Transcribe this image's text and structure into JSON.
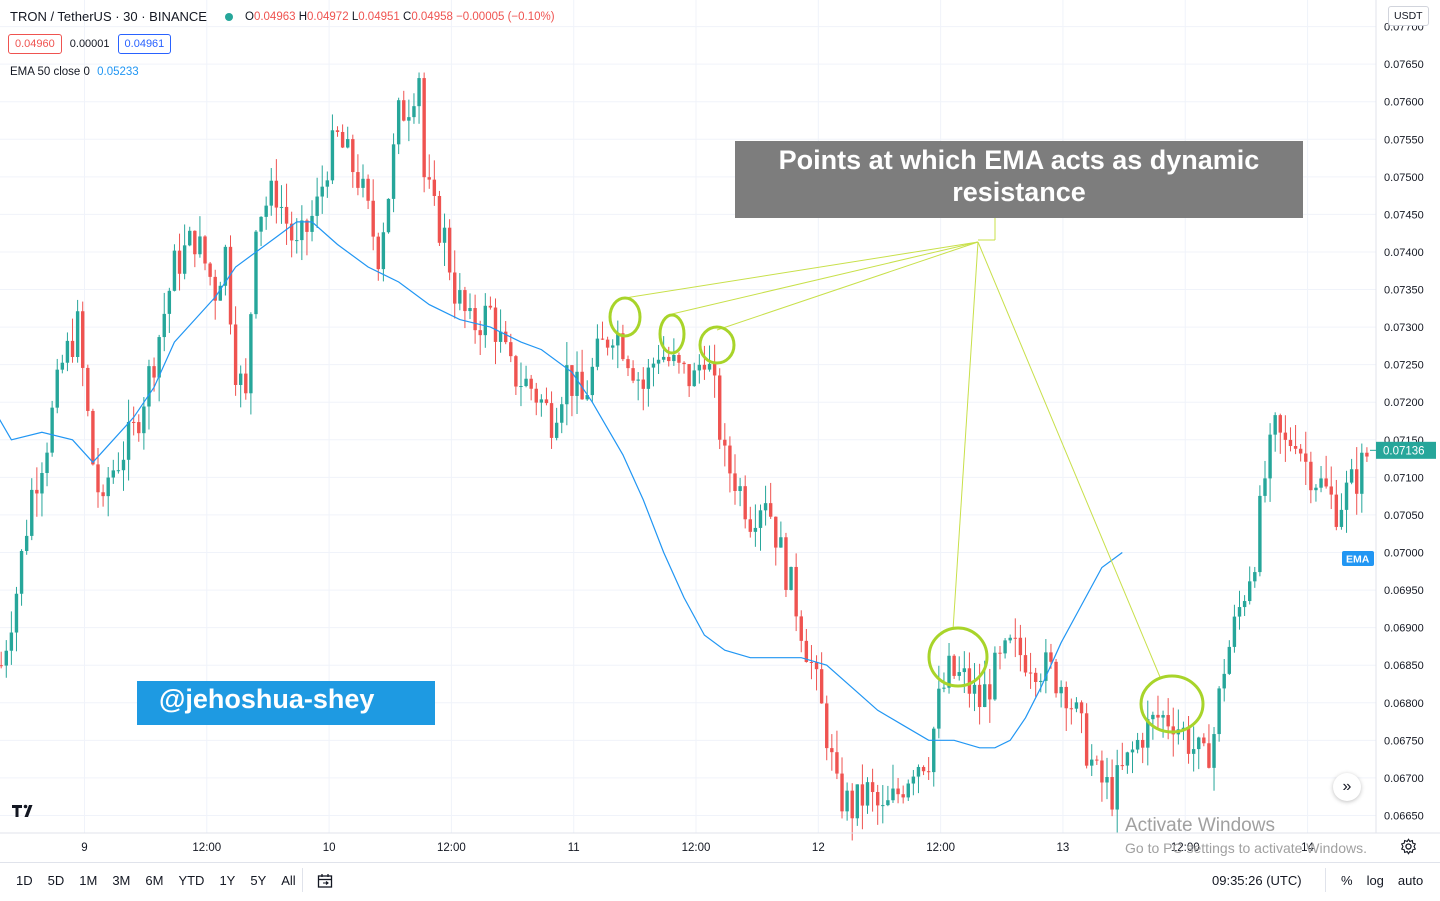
{
  "header": {
    "symbol_line": "TRON / TetherUS · 30 · BINANCE",
    "ohlc": {
      "o_label": "O",
      "o": "0.04963",
      "h_label": "H",
      "h": "0.04972",
      "l_label": "L",
      "l": "0.04951",
      "c_label": "C",
      "c": "0.04958",
      "change": "−0.00005 (−0.10%)"
    },
    "bid": "0.04960",
    "spread": "0.00001",
    "ask": "0.04961"
  },
  "ema_legend": {
    "label": "EMA 50 close 0",
    "value": "0.05233"
  },
  "currency_button": "USDT",
  "annotation_text": "Points at which EMA acts as dynamic resistance",
  "handle_text": "@jehoshua-shey",
  "bottom": {
    "ranges": [
      "1D",
      "5D",
      "1M",
      "3M",
      "6M",
      "YTD",
      "1Y",
      "5Y",
      "All"
    ],
    "clock": "09:35:26 (UTC)",
    "scale_opts": [
      "%",
      "log",
      "auto"
    ]
  },
  "watermark": {
    "line1": "Activate Windows",
    "line2": "Go to PC settings to activate Windows."
  },
  "colors": {
    "up": "#26a69a",
    "down": "#ef5350",
    "ema": "#2196f3",
    "annotation_lines": "#c8e04a",
    "annotation_box": "#7d7d7d",
    "handle_bg": "#1e9ae2"
  },
  "chart_data": {
    "type": "candlestick",
    "ylim": [
      0.0663,
      0.0771
    ],
    "y_ticks": [
      "0.06650",
      "0.06700",
      "0.06750",
      "0.06800",
      "0.06850",
      "0.06900",
      "0.06950",
      "0.07000",
      "0.07050",
      "0.07100",
      "0.07150",
      "0.07200",
      "0.07250",
      "0.07300",
      "0.07350",
      "0.07400",
      "0.07450",
      "0.07500",
      "0.07550",
      "0.07600",
      "0.07650",
      "0.07700"
    ],
    "x_ticks": [
      {
        "label": "9",
        "bar": 0.35
      },
      {
        "label": "12:00",
        "bar": 24.35
      },
      {
        "label": "10",
        "bar": 48.35
      },
      {
        "label": "12:00",
        "bar": 72.35
      },
      {
        "label": "11",
        "bar": 96.35
      },
      {
        "label": "12:00",
        "bar": 120.35
      },
      {
        "label": "12",
        "bar": 144.35
      },
      {
        "label": "12:00",
        "bar": 168.35
      },
      {
        "label": "13",
        "bar": 192.35
      },
      {
        "label": "12:00",
        "bar": 216.35
      },
      {
        "label": "14",
        "bar": 240.35
      }
    ],
    "last_price_label": "0.07136",
    "ema_label": "EMA",
    "waypoints": [
      [
        -16,
        0.0685
      ],
      [
        -13,
        0.0695
      ],
      [
        -10,
        0.0708
      ],
      [
        -7,
        0.0715
      ],
      [
        -4,
        0.0725
      ],
      [
        -1,
        0.073
      ],
      [
        2,
        0.0712
      ],
      [
        4,
        0.0705
      ],
      [
        5,
        0.071
      ],
      [
        10,
        0.0716
      ],
      [
        14,
        0.0726
      ],
      [
        18,
        0.0738
      ],
      [
        22,
        0.0742
      ],
      [
        26,
        0.0735
      ],
      [
        28,
        0.074
      ],
      [
        30,
        0.0725
      ],
      [
        32,
        0.072
      ],
      [
        34,
        0.0745
      ],
      [
        38,
        0.0748
      ],
      [
        42,
        0.074
      ],
      [
        46,
        0.0746
      ],
      [
        48,
        0.0752
      ],
      [
        50,
        0.0755
      ],
      [
        54,
        0.075
      ],
      [
        56,
        0.0745
      ],
      [
        58,
        0.074
      ],
      [
        60,
        0.0748
      ],
      [
        62,
        0.0758
      ],
      [
        64,
        0.076
      ],
      [
        66,
        0.0764
      ],
      [
        67,
        0.075
      ],
      [
        69,
        0.0745
      ],
      [
        71,
        0.0742
      ],
      [
        73,
        0.0735
      ],
      [
        76,
        0.073
      ],
      [
        80,
        0.0732
      ],
      [
        84,
        0.0724
      ],
      [
        88,
        0.0722
      ],
      [
        92,
        0.0718
      ],
      [
        95,
        0.0724
      ],
      [
        98,
        0.072
      ],
      [
        101,
        0.0726
      ],
      [
        104,
        0.073
      ],
      [
        106,
        0.0728
      ],
      [
        108,
        0.0725
      ],
      [
        110,
        0.0722
      ],
      [
        113,
        0.0727
      ],
      [
        117,
        0.0724
      ],
      [
        120,
        0.0723
      ],
      [
        122,
        0.0727
      ],
      [
        124,
        0.0721
      ],
      [
        126,
        0.0712
      ],
      [
        128,
        0.071
      ],
      [
        131,
        0.0705
      ],
      [
        134,
        0.0708
      ],
      [
        137,
        0.07
      ],
      [
        140,
        0.0693
      ],
      [
        143,
        0.0685
      ],
      [
        146,
        0.0676
      ],
      [
        148,
        0.0668
      ],
      [
        151,
        0.0666
      ],
      [
        154,
        0.0668
      ],
      [
        157,
        0.0665
      ],
      [
        160,
        0.0668
      ],
      [
        163,
        0.0672
      ],
      [
        166,
        0.0673
      ],
      [
        168,
        0.068
      ],
      [
        170,
        0.0684
      ],
      [
        173,
        0.0683
      ],
      [
        176,
        0.068
      ],
      [
        179,
        0.0684
      ],
      [
        182,
        0.0687
      ],
      [
        186,
        0.0686
      ],
      [
        190,
        0.0684
      ],
      [
        193,
        0.0682
      ],
      [
        196,
        0.0676
      ],
      [
        199,
        0.067
      ],
      [
        202,
        0.0668
      ],
      [
        205,
        0.0672
      ],
      [
        208,
        0.0676
      ],
      [
        211,
        0.0678
      ],
      [
        214,
        0.0678
      ],
      [
        217,
        0.0675
      ],
      [
        220,
        0.0672
      ],
      [
        222,
        0.0676
      ],
      [
        224,
        0.0685
      ],
      [
        226,
        0.069
      ],
      [
        228,
        0.0695
      ],
      [
        230,
        0.07
      ],
      [
        232,
        0.071
      ],
      [
        234,
        0.0716
      ],
      [
        236,
        0.0714
      ],
      [
        238,
        0.0716
      ],
      [
        240,
        0.0712
      ],
      [
        242,
        0.071
      ],
      [
        244,
        0.0708
      ],
      [
        246,
        0.0706
      ],
      [
        248,
        0.0708
      ],
      [
        250,
        0.071
      ],
      [
        252,
        0.0713
      ]
    ],
    "ema": [
      [
        -20,
        0.0722
      ],
      [
        -14,
        0.0715
      ],
      [
        -8,
        0.0716
      ],
      [
        -2,
        0.0715
      ],
      [
        2,
        0.0712
      ],
      [
        6,
        0.0715
      ],
      [
        10,
        0.0718
      ],
      [
        14,
        0.0722
      ],
      [
        18,
        0.0728
      ],
      [
        22,
        0.0731
      ],
      [
        26,
        0.0734
      ],
      [
        30,
        0.0738
      ],
      [
        34,
        0.074
      ],
      [
        38,
        0.0742
      ],
      [
        42,
        0.0744
      ],
      [
        45,
        0.0744
      ],
      [
        50,
        0.0741
      ],
      [
        56,
        0.0738
      ],
      [
        62,
        0.0736
      ],
      [
        68,
        0.0733
      ],
      [
        74,
        0.0731
      ],
      [
        80,
        0.073
      ],
      [
        86,
        0.0728
      ],
      [
        90,
        0.0727
      ],
      [
        96,
        0.0724
      ],
      [
        100,
        0.072
      ],
      [
        106,
        0.0713
      ],
      [
        110,
        0.0707
      ],
      [
        114,
        0.07
      ],
      [
        118,
        0.0694
      ],
      [
        122,
        0.0689
      ],
      [
        126,
        0.0687
      ],
      [
        131,
        0.0686
      ],
      [
        136,
        0.0686
      ],
      [
        141,
        0.0686
      ],
      [
        146,
        0.0685
      ],
      [
        151,
        0.0682
      ],
      [
        156,
        0.0679
      ],
      [
        161,
        0.0677
      ],
      [
        166,
        0.0675
      ],
      [
        171,
        0.0675
      ],
      [
        176,
        0.0674
      ],
      [
        179,
        0.0674
      ],
      [
        182,
        0.0675
      ],
      [
        185,
        0.0678
      ],
      [
        188,
        0.0682
      ],
      [
        192,
        0.0688
      ],
      [
        196,
        0.0693
      ],
      [
        200,
        0.0698
      ],
      [
        204,
        0.07
      ]
    ]
  }
}
